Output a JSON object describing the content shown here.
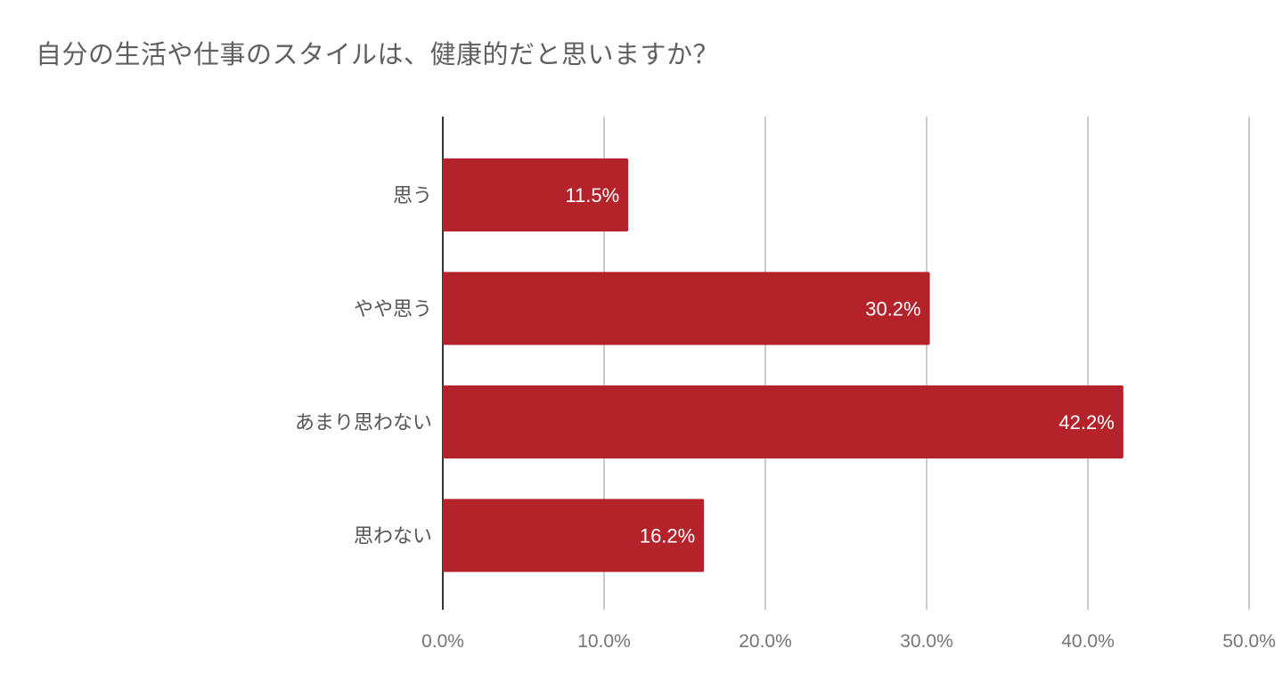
{
  "chart_data": {
    "type": "bar",
    "orientation": "horizontal",
    "title": "自分の生活や仕事のスタイルは、健康的だと思いますか？",
    "categories": [
      "思う",
      "やや思う",
      "あまり思わない",
      "思わない"
    ],
    "values": [
      11.5,
      30.2,
      42.2,
      16.2
    ],
    "data_labels": [
      "11.5%",
      "30.2%",
      "42.2%",
      "16.2%"
    ],
    "xlim": [
      0,
      50
    ],
    "x_ticks": [
      0,
      10,
      20,
      30,
      40,
      50
    ],
    "x_tick_labels": [
      "0.0%",
      "10.0%",
      "20.0%",
      "30.0%",
      "40.0%",
      "50.0%"
    ],
    "grid": true,
    "legend": "none",
    "bar_color": "#b5232a",
    "xlabel": "",
    "ylabel": ""
  }
}
